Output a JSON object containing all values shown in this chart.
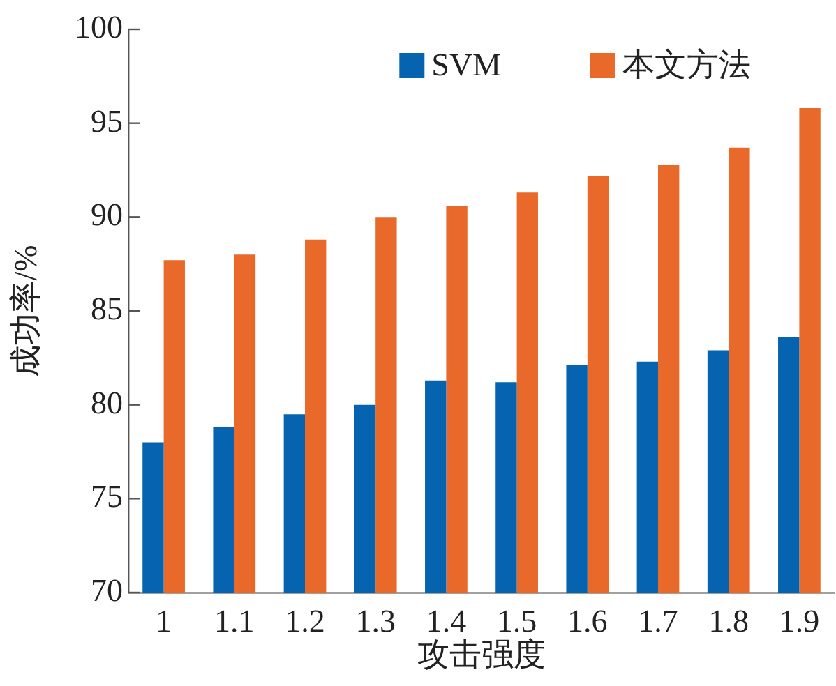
{
  "chart_data": {
    "type": "bar",
    "xlabel": "攻击强度",
    "ylabel": "成功率/%",
    "categories": [
      "1",
      "1.1",
      "1.2",
      "1.3",
      "1.4",
      "1.5",
      "1.6",
      "1.7",
      "1.8",
      "1.9"
    ],
    "series": [
      {
        "name": "SVM",
        "color": "#0563b0",
        "values": [
          78.0,
          78.8,
          79.5,
          80.0,
          81.3,
          81.2,
          82.1,
          82.3,
          82.9,
          83.6
        ]
      },
      {
        "name": "本文方法",
        "color": "#e8692a",
        "values": [
          87.7,
          88.0,
          88.8,
          90.0,
          90.6,
          91.3,
          92.2,
          92.8,
          93.7,
          95.8
        ]
      }
    ],
    "ylim": [
      70,
      100
    ],
    "yticks": [
      70,
      75,
      80,
      85,
      90,
      95,
      100
    ],
    "grid": false,
    "legend": "top right"
  }
}
